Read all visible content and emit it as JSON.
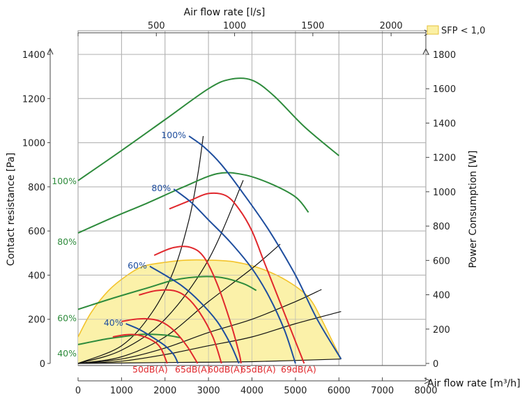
{
  "chart_data": {
    "type": "line",
    "top_axis": {
      "label": "Air flow rate [l/s]",
      "ticks": [
        500,
        1000,
        1500,
        2000
      ],
      "range": [
        0,
        2222
      ]
    },
    "x_axis": {
      "label": "Air flow rate [m³/h]",
      "ticks": [
        0,
        1000,
        2000,
        3000,
        4000,
        5000,
        6000,
        7000,
        8000
      ],
      "range": [
        0,
        8000
      ]
    },
    "left_axis": {
      "label": "Contact resistance [Pa]",
      "ticks": [
        0,
        200,
        400,
        600,
        800,
        1000,
        1200,
        1400
      ],
      "range": [
        0,
        1400
      ]
    },
    "right_axis": {
      "label": "Power Consumption [W]",
      "ticks": [
        0,
        200,
        400,
        600,
        800,
        1000,
        1200,
        1400,
        1600,
        1800
      ],
      "range": [
        0,
        1800
      ]
    },
    "legend": {
      "label": "SFP < 1,0",
      "color": "#fbf0a4",
      "border": "#e6c23a"
    },
    "grid": true,
    "colors": {
      "pressure": "#1f4e9e",
      "power": "#2e8b3c",
      "sound": "#e0282d",
      "system": "#111111",
      "sfp_fill": "#fbf0a4",
      "sfp_edge": "#f3c32b"
    },
    "sfp_region": [
      [
        0,
        120
      ],
      [
        300,
        230
      ],
      [
        700,
        330
      ],
      [
        1100,
        395
      ],
      [
        1500,
        440
      ],
      [
        2000,
        458
      ],
      [
        2500,
        468
      ],
      [
        3000,
        468
      ],
      [
        3600,
        460
      ],
      [
        4200,
        430
      ],
      [
        4800,
        375
      ],
      [
        5300,
        300
      ],
      [
        5600,
        200
      ],
      [
        5850,
        100
      ],
      [
        6050,
        20
      ],
      [
        5000,
        10
      ],
      [
        3000,
        5
      ],
      [
        0,
        0
      ]
    ],
    "pressure_curves": [
      {
        "label": "100%",
        "points": [
          [
            2550,
            1030
          ],
          [
            2900,
            980
          ],
          [
            3300,
            900
          ],
          [
            3800,
            770
          ],
          [
            4400,
            600
          ],
          [
            5000,
            400
          ],
          [
            5500,
            200
          ],
          [
            6050,
            20
          ]
        ]
      },
      {
        "label": "80%",
        "points": [
          [
            2200,
            790
          ],
          [
            2600,
            730
          ],
          [
            3000,
            650
          ],
          [
            3500,
            550
          ],
          [
            4000,
            430
          ],
          [
            4400,
            300
          ],
          [
            4750,
            150
          ],
          [
            5000,
            0
          ]
        ]
      },
      {
        "label": "60%",
        "points": [
          [
            1650,
            440
          ],
          [
            2000,
            400
          ],
          [
            2400,
            350
          ],
          [
            2800,
            280
          ],
          [
            3200,
            190
          ],
          [
            3500,
            90
          ],
          [
            3700,
            0
          ]
        ]
      },
      {
        "label": "40%",
        "points": [
          [
            1100,
            180
          ],
          [
            1400,
            155
          ],
          [
            1700,
            120
          ],
          [
            2000,
            80
          ],
          [
            2200,
            40
          ],
          [
            2300,
            0
          ]
        ]
      }
    ],
    "power_curves": [
      {
        "label": "100%",
        "points": [
          [
            0,
            1065
          ],
          [
            1000,
            1240
          ],
          [
            2000,
            1420
          ],
          [
            3000,
            1600
          ],
          [
            3500,
            1655
          ],
          [
            4000,
            1650
          ],
          [
            4500,
            1560
          ],
          [
            5200,
            1380
          ],
          [
            6000,
            1210
          ]
        ]
      },
      {
        "label": "80%",
        "points": [
          [
            0,
            760
          ],
          [
            800,
            850
          ],
          [
            1600,
            935
          ],
          [
            2400,
            1025
          ],
          [
            3200,
            1105
          ],
          [
            3800,
            1100
          ],
          [
            4400,
            1050
          ],
          [
            5000,
            970
          ],
          [
            5300,
            880
          ]
        ]
      },
      {
        "label": "60%",
        "points": [
          [
            0,
            315
          ],
          [
            800,
            380
          ],
          [
            1600,
            440
          ],
          [
            2200,
            485
          ],
          [
            2800,
            505
          ],
          [
            3300,
            500
          ],
          [
            3800,
            465
          ],
          [
            4100,
            425
          ]
        ]
      },
      {
        "label": "40%",
        "points": [
          [
            0,
            110
          ],
          [
            600,
            140
          ],
          [
            1000,
            155
          ],
          [
            1500,
            170
          ],
          [
            2000,
            165
          ],
          [
            2350,
            150
          ]
        ]
      }
    ],
    "sound_curves": [
      {
        "label": "50dB(A)",
        "points": [
          [
            800,
            120
          ],
          [
            1100,
            130
          ],
          [
            1400,
            128
          ],
          [
            1700,
            105
          ],
          [
            1900,
            70
          ],
          [
            2050,
            0
          ]
        ]
      },
      {
        "label": "65dB(A)",
        "points": [
          [
            1000,
            190
          ],
          [
            1300,
            200
          ],
          [
            1600,
            202
          ],
          [
            1900,
            190
          ],
          [
            2200,
            150
          ],
          [
            2500,
            80
          ],
          [
            2750,
            0
          ]
        ]
      },
      {
        "label": "60dB(A)",
        "points": [
          [
            1400,
            310
          ],
          [
            1800,
            330
          ],
          [
            2200,
            330
          ],
          [
            2500,
            300
          ],
          [
            2800,
            230
          ],
          [
            3100,
            120
          ],
          [
            3300,
            0
          ]
        ]
      },
      {
        "label": "65dB(A)",
        "points": [
          [
            1750,
            490
          ],
          [
            2200,
            525
          ],
          [
            2600,
            525
          ],
          [
            2900,
            480
          ],
          [
            3200,
            360
          ],
          [
            3500,
            190
          ],
          [
            3700,
            50
          ],
          [
            3750,
            0
          ]
        ]
      },
      {
        "label": "69dB(A)",
        "points": [
          [
            2100,
            700
          ],
          [
            2600,
            740
          ],
          [
            3000,
            770
          ],
          [
            3400,
            760
          ],
          [
            3700,
            700
          ],
          [
            4000,
            600
          ],
          [
            4300,
            450
          ],
          [
            4700,
            250
          ],
          [
            5000,
            100
          ],
          [
            5200,
            0
          ]
        ]
      }
    ],
    "system_curves": [
      [
        [
          0,
          0
        ],
        [
          1000,
          80
        ],
        [
          1700,
          230
        ],
        [
          2200,
          420
        ],
        [
          2550,
          650
        ],
        [
          2750,
          850
        ],
        [
          2880,
          1030
        ]
      ],
      [
        [
          0,
          0
        ],
        [
          1000,
          60
        ],
        [
          2000,
          200
        ],
        [
          3000,
          470
        ],
        [
          3800,
          830
        ]
      ],
      [
        [
          0,
          0
        ],
        [
          1000,
          30
        ],
        [
          2000,
          120
        ],
        [
          3000,
          280
        ],
        [
          4000,
          430
        ],
        [
          4650,
          540
        ]
      ],
      [
        [
          0,
          0
        ],
        [
          1000,
          20
        ],
        [
          2000,
          70
        ],
        [
          3000,
          140
        ],
        [
          4000,
          200
        ],
        [
          5000,
          280
        ],
        [
          5600,
          335
        ]
      ],
      [
        [
          0,
          0
        ],
        [
          1000,
          10
        ],
        [
          2000,
          40
        ],
        [
          3000,
          80
        ],
        [
          4000,
          120
        ],
        [
          5000,
          180
        ],
        [
          6050,
          235
        ]
      ],
      [
        [
          0,
          0
        ],
        [
          2000,
          4
        ],
        [
          4000,
          8
        ],
        [
          6050,
          20
        ]
      ]
    ],
    "sound_labels": [
      "50dB(A)",
      "65dB(A)",
      "60dB(A)",
      "65dB(A)",
      "69dB(A)"
    ],
    "speed_labels_pressure": [
      "100%",
      "80%",
      "60%",
      "40%"
    ],
    "speed_labels_power": [
      "100%",
      "80%",
      "60%",
      "40%"
    ]
  }
}
